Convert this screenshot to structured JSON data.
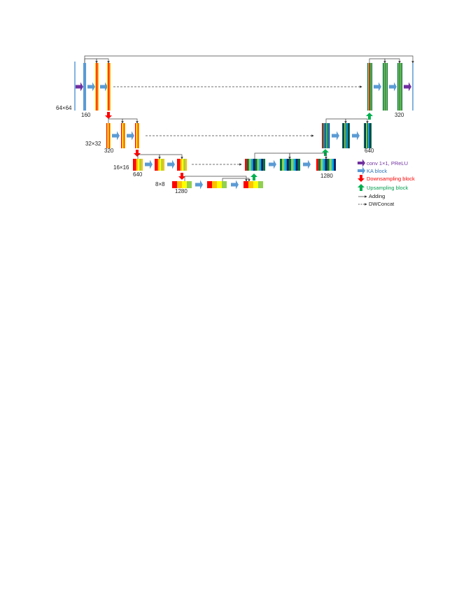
{
  "colors": {
    "purple": "#7030a0",
    "blue": "#5b9bd5",
    "red": "#ff0000",
    "green": "#00b050",
    "orange": "#ffc000",
    "yellow": "#ffff00",
    "lightgreen": "#92d050",
    "navy": "#002060",
    "darkgreen": "#00703c",
    "teal": "#00b0f0",
    "line": "#555555"
  },
  "resolutions": {
    "r64": "64×64",
    "r32": "32×32",
    "r16": "16×16",
    "r8": "8×8"
  },
  "channels": {
    "c160": "160",
    "c320_down": "320",
    "c640_down": "640",
    "c1280_bottom": "1280",
    "c1280_up": "1280",
    "c640_up": "640",
    "c320_up": "320"
  },
  "legend": {
    "conv": "conv 1×1, PReLU",
    "ka": "KA block",
    "down": "Downsampling block",
    "up": "Upsampling block",
    "adding": "Adding",
    "dwconcat": "DWConcat"
  }
}
